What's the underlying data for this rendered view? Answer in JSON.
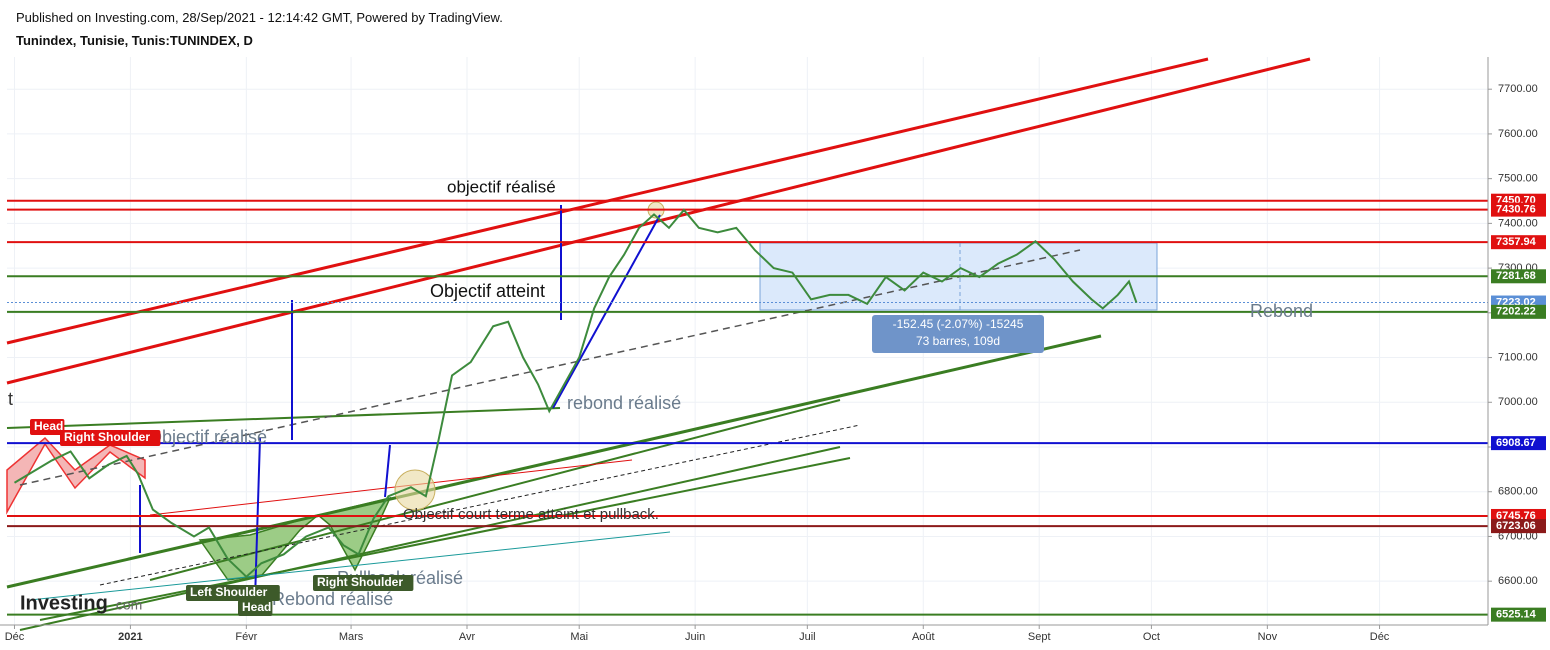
{
  "header": {
    "published": "Published on Investing.com, 28/Sep/2021 - 12:14:42 GMT, Powered by TradingView.",
    "symbol": "Tunindex, Tunisie, Tunis:TUNINDEX, D"
  },
  "logo": {
    "brand": "Investing",
    "suffix": ".com"
  },
  "chart_data": {
    "type": "line",
    "x": [
      0,
      10,
      15,
      20,
      25,
      30,
      33,
      37,
      42,
      48,
      52,
      57,
      62,
      66,
      72,
      78,
      84,
      88,
      92,
      96,
      100,
      106,
      110,
      113,
      117,
      122,
      128,
      132,
      136,
      140,
      143,
      147,
      151,
      155,
      159,
      163,
      167,
      171,
      175,
      179,
      183,
      188,
      193,
      198,
      203,
      208,
      213,
      218,
      223,
      228,
      233,
      238,
      243,
      248,
      253,
      258,
      263,
      268,
      273,
      278,
      283,
      288,
      291,
      295,
      298,
      300
    ],
    "series": [
      {
        "name": "Tunindex",
        "color": "#3d8b3d",
        "values": [
          6820,
          6870,
          6890,
          6830,
          6860,
          6880,
          6840,
          6760,
          6730,
          6700,
          6720,
          6650,
          6610,
          6640,
          6660,
          6700,
          6720,
          6680,
          6660,
          6740,
          6790,
          6810,
          6790,
          6900,
          7060,
          7090,
          7170,
          7180,
          7100,
          7040,
          6980,
          7040,
          7100,
          7210,
          7280,
          7330,
          7390,
          7420,
          7390,
          7430,
          7390,
          7380,
          7390,
          7340,
          7300,
          7290,
          7230,
          7240,
          7240,
          7220,
          7280,
          7250,
          7290,
          7270,
          7300,
          7280,
          7310,
          7330,
          7360,
          7320,
          7270,
          7230,
          7210,
          7240,
          7270,
          7223
        ]
      }
    ],
    "xlim": [
      -2,
      394
    ],
    "ylim": [
      6502,
      7772
    ],
    "xticks": [
      {
        "value": 0,
        "label": "Déc"
      },
      {
        "value": 31,
        "label": "2021"
      },
      {
        "value": 62,
        "label": "Févr"
      },
      {
        "value": 90,
        "label": "Mars"
      },
      {
        "value": 121,
        "label": "Avr"
      },
      {
        "value": 151,
        "label": "Mai"
      },
      {
        "value": 182,
        "label": "Juin"
      },
      {
        "value": 212,
        "label": "Juil"
      },
      {
        "value": 243,
        "label": "Août"
      },
      {
        "value": 274,
        "label": "Sept"
      },
      {
        "value": 304,
        "label": "Oct"
      },
      {
        "value": 335,
        "label": "Nov"
      },
      {
        "value": 365,
        "label": "Déc"
      }
    ],
    "yticks": [
      {
        "value": 6600,
        "label": "6600.00"
      },
      {
        "value": 6700,
        "label": "6700.00"
      },
      {
        "value": 6800,
        "label": "6800.00"
      },
      {
        "value": 6900,
        "label": "6900.00"
      },
      {
        "value": 7000,
        "label": "7000.00"
      },
      {
        "value": 7100,
        "label": "7100.00"
      },
      {
        "value": 7200,
        "label": "7200.00"
      },
      {
        "value": 7300,
        "label": "7300.00"
      },
      {
        "value": 7400,
        "label": "7400.00"
      },
      {
        "value": 7500,
        "label": "7500.00"
      },
      {
        "value": 7600,
        "label": "7600.00"
      },
      {
        "value": 7700,
        "label": "7700.00"
      }
    ],
    "grid": true,
    "levels": [
      {
        "value": 7450.7,
        "label": "7450.70",
        "color": "#e01010"
      },
      {
        "value": 7430.76,
        "label": "7430.76",
        "color": "#e01010"
      },
      {
        "value": 7357.94,
        "label": "7357.94",
        "color": "#e01010"
      },
      {
        "value": 7281.68,
        "label": "7281.68",
        "color": "#3a7d22"
      },
      {
        "value": 7223.02,
        "label": "7223.02",
        "color": "#5b8fd6"
      },
      {
        "value": 7202.22,
        "label": "7202.22",
        "color": "#3a7d22"
      },
      {
        "value": 6908.67,
        "label": "6908.67",
        "color": "#1010d0"
      },
      {
        "value": 6745.76,
        "label": "6745.76",
        "color": "#e01010"
      },
      {
        "value": 6723.06,
        "label": "6723.06",
        "color": "#8b1a1a"
      },
      {
        "value": 6525.14,
        "label": "6525.14",
        "color": "#3a7d22"
      }
    ],
    "annotations": [
      "objectif réalisé",
      "Objectif atteint",
      "rebond réalisé",
      "Objectif réalisé",
      "Objectif court terme atteint et pullback.",
      "Pullback réalisé",
      "Rebond réalisé",
      "Rebond",
      "t"
    ],
    "pattern_labels": [
      "Head",
      "Right Shoulder",
      "Left Shoulder",
      "Head",
      "Right Shoulder"
    ],
    "measure": [
      "-152.45 (-2.07%) -15245",
      "73 barres, 109d"
    ]
  }
}
